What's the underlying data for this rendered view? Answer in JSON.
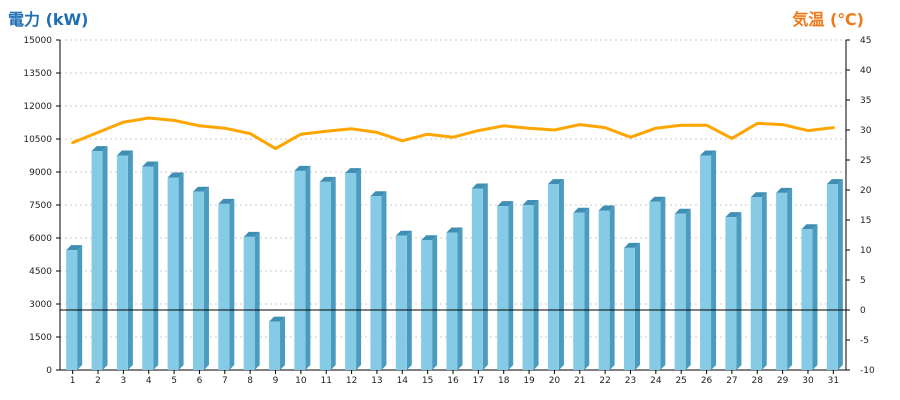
{
  "colors": {
    "left_title": "#1f6fb5",
    "right_title": "#f07a1a",
    "bar_front": "#86cbe6",
    "bar_side": "#4a9bbd",
    "bar_top": "#3f8fb4",
    "line": "#ffa500",
    "axis": "#000000",
    "grid": "#bbbbbb"
  },
  "chart_data": {
    "type": "bar",
    "title_left": "電力 (kW)",
    "title_right": "気温 (℃)",
    "categories": [
      "1",
      "2",
      "3",
      "4",
      "5",
      "6",
      "7",
      "8",
      "9",
      "10",
      "11",
      "12",
      "13",
      "14",
      "15",
      "16",
      "17",
      "18",
      "19",
      "20",
      "21",
      "22",
      "23",
      "24",
      "25",
      "26",
      "27",
      "28",
      "29",
      "30",
      "31"
    ],
    "series": [
      {
        "axis": "left",
        "type": "bar",
        "values": [
          5450,
          9950,
          9750,
          9250,
          8750,
          8100,
          7550,
          6050,
          2200,
          9050,
          8550,
          8950,
          7900,
          6100,
          5900,
          6250,
          8250,
          7450,
          7500,
          8450,
          7150,
          7250,
          5550,
          7650,
          7100,
          9750,
          6950,
          7850,
          8050,
          6400,
          8450
        ]
      },
      {
        "axis": "right",
        "type": "line",
        "values": [
          27.9,
          29.6,
          31.3,
          32,
          31.6,
          30.7,
          30.3,
          29.4,
          26.9,
          29.3,
          29.8,
          30.2,
          29.6,
          28.2,
          29.3,
          28.8,
          29.9,
          30.7,
          30.3,
          30,
          30.9,
          30.4,
          28.8,
          30.3,
          30.8,
          30.8,
          28.6,
          31.1,
          30.9,
          29.9,
          30.4
        ]
      }
    ],
    "ylim_left": [
      0,
      15000
    ],
    "yticks_left": [
      "0",
      "1500",
      "3000",
      "4500",
      "6000",
      "7500",
      "9000",
      "10500",
      "12000",
      "13500",
      "15000"
    ],
    "ylim_right": [
      -10,
      45
    ],
    "yticks_right": [
      "-10",
      "-5",
      "0",
      "5",
      "10",
      "15",
      "20",
      "25",
      "30",
      "35",
      "40",
      "45"
    ],
    "grid": true
  }
}
